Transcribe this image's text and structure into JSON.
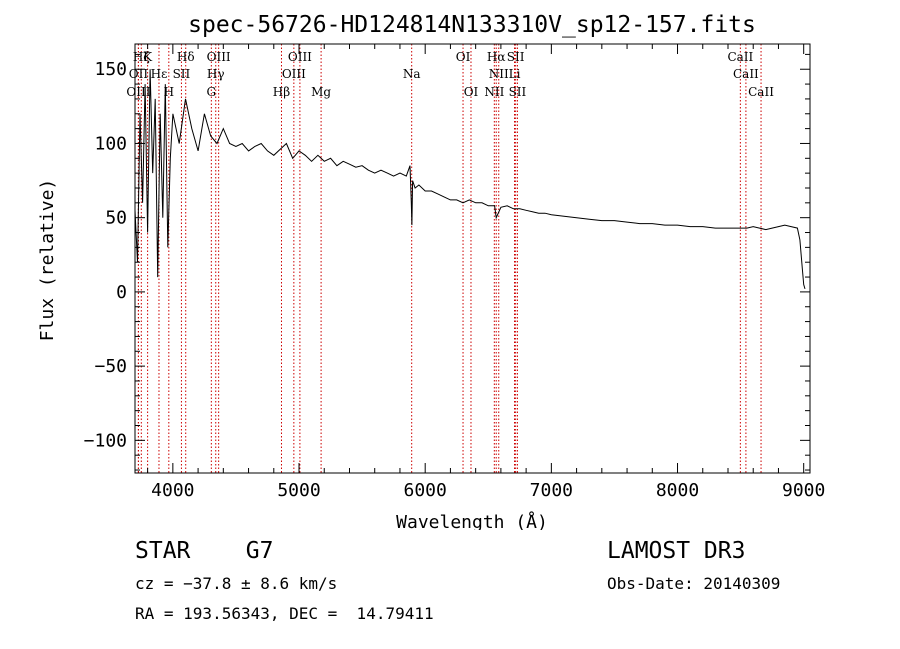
{
  "chart_data": {
    "type": "line",
    "title": "spec-56726-HD124814N133310V_sp12-157.fits",
    "xlabel": "Wavelength (Å)",
    "ylabel": "Flux (relative)",
    "xlim": [
      3700,
      9050
    ],
    "ylim": [
      -122,
      167
    ],
    "xticks": [
      4000,
      5000,
      6000,
      7000,
      8000,
      9000
    ],
    "xtick_labels": [
      "4000",
      "5000",
      "6000",
      "7000",
      "8000",
      "9000"
    ],
    "yticks": [
      -100,
      -50,
      0,
      50,
      100,
      150
    ],
    "ytick_labels": [
      "−100",
      "−50",
      "0",
      "50",
      "100",
      "150"
    ],
    "line_color": "#000000",
    "marker_color": "#cc0000",
    "series": [
      {
        "name": "flux",
        "x": [
          3700,
          3720,
          3740,
          3760,
          3780,
          3800,
          3820,
          3840,
          3860,
          3880,
          3900,
          3920,
          3940,
          3960,
          3980,
          4000,
          4050,
          4100,
          4150,
          4200,
          4250,
          4300,
          4350,
          4400,
          4450,
          4500,
          4550,
          4600,
          4650,
          4700,
          4750,
          4800,
          4850,
          4900,
          4950,
          5000,
          5050,
          5100,
          5150,
          5200,
          5250,
          5300,
          5350,
          5400,
          5450,
          5500,
          5550,
          5600,
          5650,
          5700,
          5750,
          5800,
          5850,
          5880,
          5890,
          5895,
          5900,
          5920,
          5950,
          6000,
          6050,
          6100,
          6150,
          6200,
          6250,
          6300,
          6350,
          6400,
          6450,
          6500,
          6550,
          6563,
          6600,
          6650,
          6700,
          6750,
          6800,
          6850,
          6900,
          6950,
          7000,
          7100,
          7200,
          7300,
          7400,
          7500,
          7600,
          7700,
          7800,
          7900,
          8000,
          8100,
          8200,
          8300,
          8400,
          8500,
          8550,
          8600,
          8650,
          8700,
          8750,
          8800,
          8850,
          8900,
          8950,
          8970,
          8990,
          9000,
          9010
        ],
        "y": [
          55,
          20,
          120,
          60,
          140,
          40,
          150,
          80,
          130,
          10,
          120,
          50,
          140,
          30,
          90,
          120,
          100,
          130,
          110,
          95,
          120,
          105,
          100,
          110,
          100,
          98,
          100,
          95,
          98,
          100,
          95,
          92,
          96,
          100,
          90,
          95,
          92,
          88,
          92,
          88,
          90,
          85,
          88,
          86,
          84,
          85,
          82,
          80,
          82,
          80,
          78,
          80,
          78,
          85,
          60,
          45,
          75,
          70,
          72,
          68,
          68,
          66,
          64,
          62,
          62,
          60,
          62,
          60,
          60,
          58,
          58,
          50,
          57,
          58,
          56,
          56,
          55,
          54,
          53,
          53,
          52,
          51,
          50,
          49,
          48,
          48,
          47,
          46,
          46,
          45,
          45,
          44,
          44,
          43,
          43,
          43,
          43,
          44,
          43,
          42,
          43,
          44,
          45,
          44,
          43,
          35,
          15,
          5,
          2
        ]
      }
    ],
    "lines": [
      {
        "label": "Hζ",
        "x": 3750,
        "row": 0
      },
      {
        "label": "K",
        "x": 3800,
        "row": 0
      },
      {
        "label": "Hδ",
        "x": 4102,
        "row": 0
      },
      {
        "label": "OIII",
        "x": 4363,
        "row": 0
      },
      {
        "label": "OIII",
        "x": 5007,
        "row": 0
      },
      {
        "label": "OI",
        "x": 6300,
        "row": 0
      },
      {
        "label": "Hα",
        "x": 6563,
        "row": 0
      },
      {
        "label": "SII",
        "x": 6717,
        "row": 0
      },
      {
        "label": "CaII",
        "x": 8498,
        "row": 0
      },
      {
        "label": "OII",
        "x": 3727,
        "row": 1
      },
      {
        "label": "Hε",
        "x": 3890,
        "row": 1
      },
      {
        "label": "SII",
        "x": 4068,
        "row": 1
      },
      {
        "label": "Hγ",
        "x": 4340,
        "row": 1
      },
      {
        "label": "OIII",
        "x": 4959,
        "row": 1
      },
      {
        "label": "Na",
        "x": 5893,
        "row": 1
      },
      {
        "label": "NII",
        "x": 6583,
        "row": 1
      },
      {
        "label": "Li",
        "x": 6708,
        "row": 1
      },
      {
        "label": "CaII",
        "x": 8542,
        "row": 1
      },
      {
        "label": "OIII",
        "x": 3727,
        "row": 2
      },
      {
        "label": "H",
        "x": 3968,
        "row": 2
      },
      {
        "label": "G",
        "x": 4305,
        "row": 2
      },
      {
        "label": "Hβ",
        "x": 4861,
        "row": 2
      },
      {
        "label": "Mg",
        "x": 5175,
        "row": 2
      },
      {
        "label": "OI",
        "x": 6363,
        "row": 2
      },
      {
        "label": "NII",
        "x": 6548,
        "row": 2
      },
      {
        "label": "SII",
        "x": 6731,
        "row": 2
      },
      {
        "label": "CaII",
        "x": 8662,
        "row": 2
      }
    ]
  },
  "info": {
    "class_line": "STAR    G7",
    "survey": "LAMOST DR3",
    "cz": "cz = −37.8 ± 8.6 km/s",
    "obs_date": "Obs-Date: 20140309",
    "coords": "RA = 193.56343, DEC =  14.79411"
  }
}
